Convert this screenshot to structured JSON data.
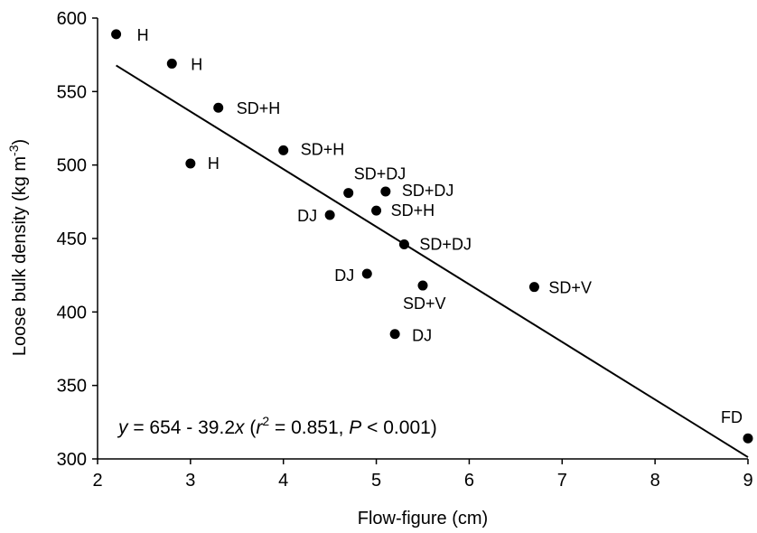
{
  "chart_data": {
    "type": "scatter",
    "title": "",
    "xlabel": "Flow-figure (cm)",
    "ylabel_parts": {
      "main": "Loose bulk density (kg m",
      "sup": "-3",
      "close": ")"
    },
    "xlim": [
      2,
      9
    ],
    "ylim": [
      300,
      600
    ],
    "xticks": [
      2,
      3,
      4,
      5,
      6,
      7,
      8,
      9
    ],
    "yticks": [
      300,
      350,
      400,
      450,
      500,
      550,
      600
    ],
    "grid": false,
    "legend": "none",
    "marker_color": "#000000",
    "points": [
      {
        "x": 2.2,
        "y": 589,
        "label": "H"
      },
      {
        "x": 2.8,
        "y": 569,
        "label": "H"
      },
      {
        "x": 3.3,
        "y": 539,
        "label": "SD+H"
      },
      {
        "x": 3.0,
        "y": 501,
        "label": "H"
      },
      {
        "x": 4.0,
        "y": 510,
        "label": "SD+H"
      },
      {
        "x": 4.7,
        "y": 481,
        "label": "SD+DJ"
      },
      {
        "x": 5.1,
        "y": 482,
        "label": "SD+DJ"
      },
      {
        "x": 4.5,
        "y": 466,
        "label": "DJ"
      },
      {
        "x": 5.0,
        "y": 469,
        "label": "SD+H"
      },
      {
        "x": 5.3,
        "y": 446,
        "label": "SD+DJ"
      },
      {
        "x": 4.9,
        "y": 426,
        "label": "DJ"
      },
      {
        "x": 5.5,
        "y": 418,
        "label": "SD+V"
      },
      {
        "x": 6.7,
        "y": 417,
        "label": "SD+V"
      },
      {
        "x": 5.2,
        "y": 385,
        "label": "DJ"
      },
      {
        "x": 9.0,
        "y": 314,
        "label": "FD"
      }
    ],
    "fit": {
      "intercept": 654,
      "slope": -39.2,
      "x_range": [
        2.2,
        9.0
      ]
    },
    "annotation_parts": [
      {
        "text": "y",
        "italic": true
      },
      {
        "text": " = 654 - 39.2",
        "italic": false
      },
      {
        "text": "x",
        "italic": true
      },
      {
        "text": "  (",
        "italic": false
      },
      {
        "text": "r",
        "italic": true
      },
      {
        "text": "2",
        "sup": true
      },
      {
        "text": " = 0.851, ",
        "italic": false
      },
      {
        "text": "P",
        "italic": true
      },
      {
        "text": " < 0.001)",
        "italic": false
      }
    ]
  }
}
